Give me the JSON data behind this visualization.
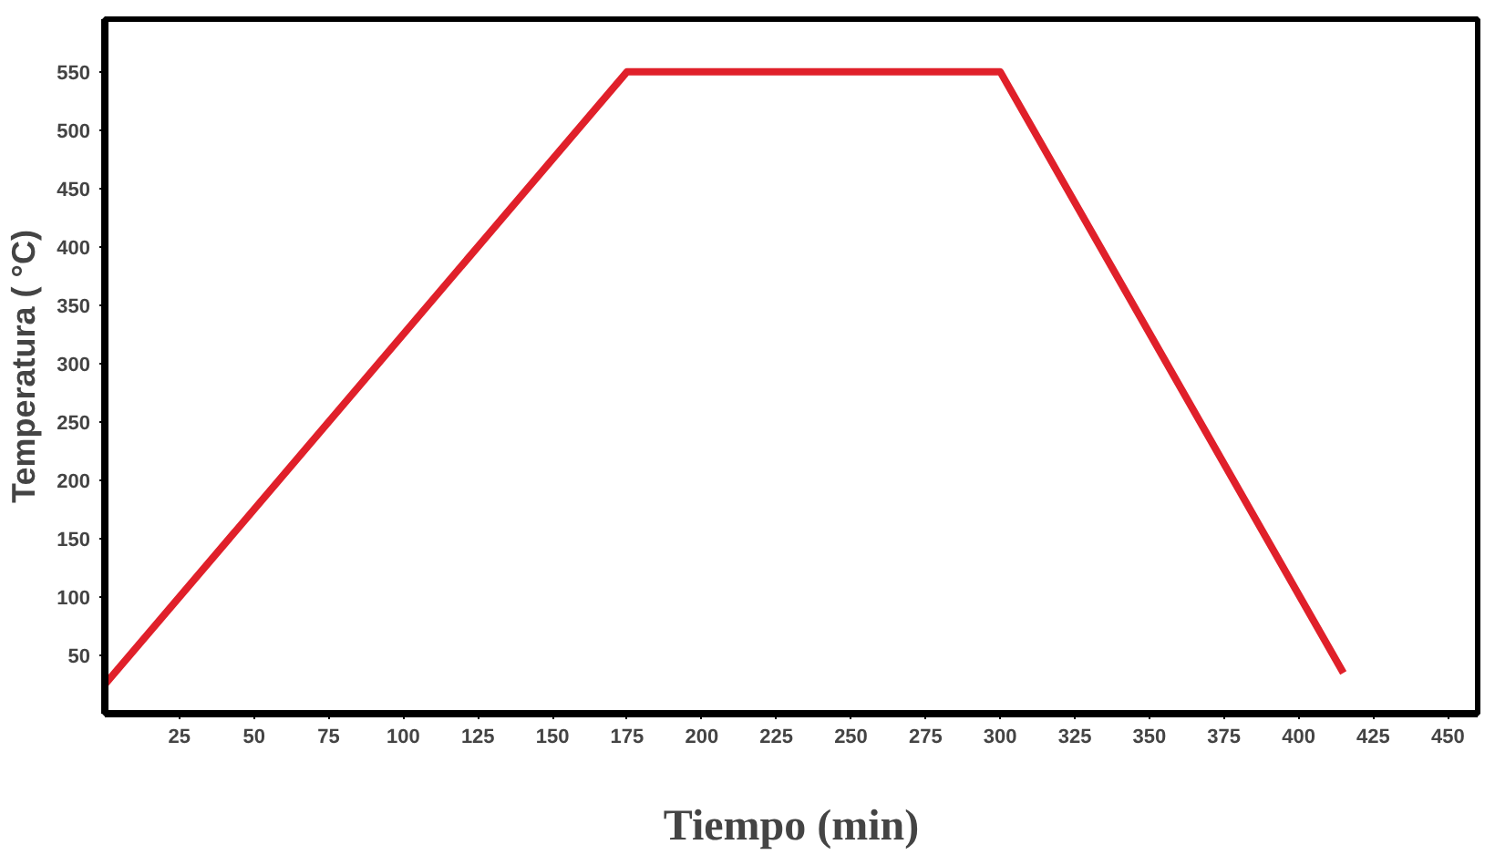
{
  "chart_data": {
    "type": "line",
    "xlabel": "Tiempo (min)",
    "ylabel": "Temperatura ( °C)",
    "x": [
      0,
      175,
      300,
      415
    ],
    "series": [
      {
        "color": "#e0202a",
        "values": [
          25,
          550,
          550,
          35
        ]
      }
    ],
    "xlim": [
      0,
      460
    ],
    "ylim": [
      0,
      595
    ],
    "xticks": [
      25,
      50,
      75,
      100,
      125,
      150,
      175,
      200,
      225,
      250,
      275,
      300,
      325,
      350,
      375,
      400,
      425,
      450
    ],
    "yticks": [
      50,
      100,
      150,
      200,
      250,
      300,
      350,
      400,
      450,
      500,
      550
    ],
    "grid": false,
    "marker": "none",
    "line_style": "solid"
  }
}
